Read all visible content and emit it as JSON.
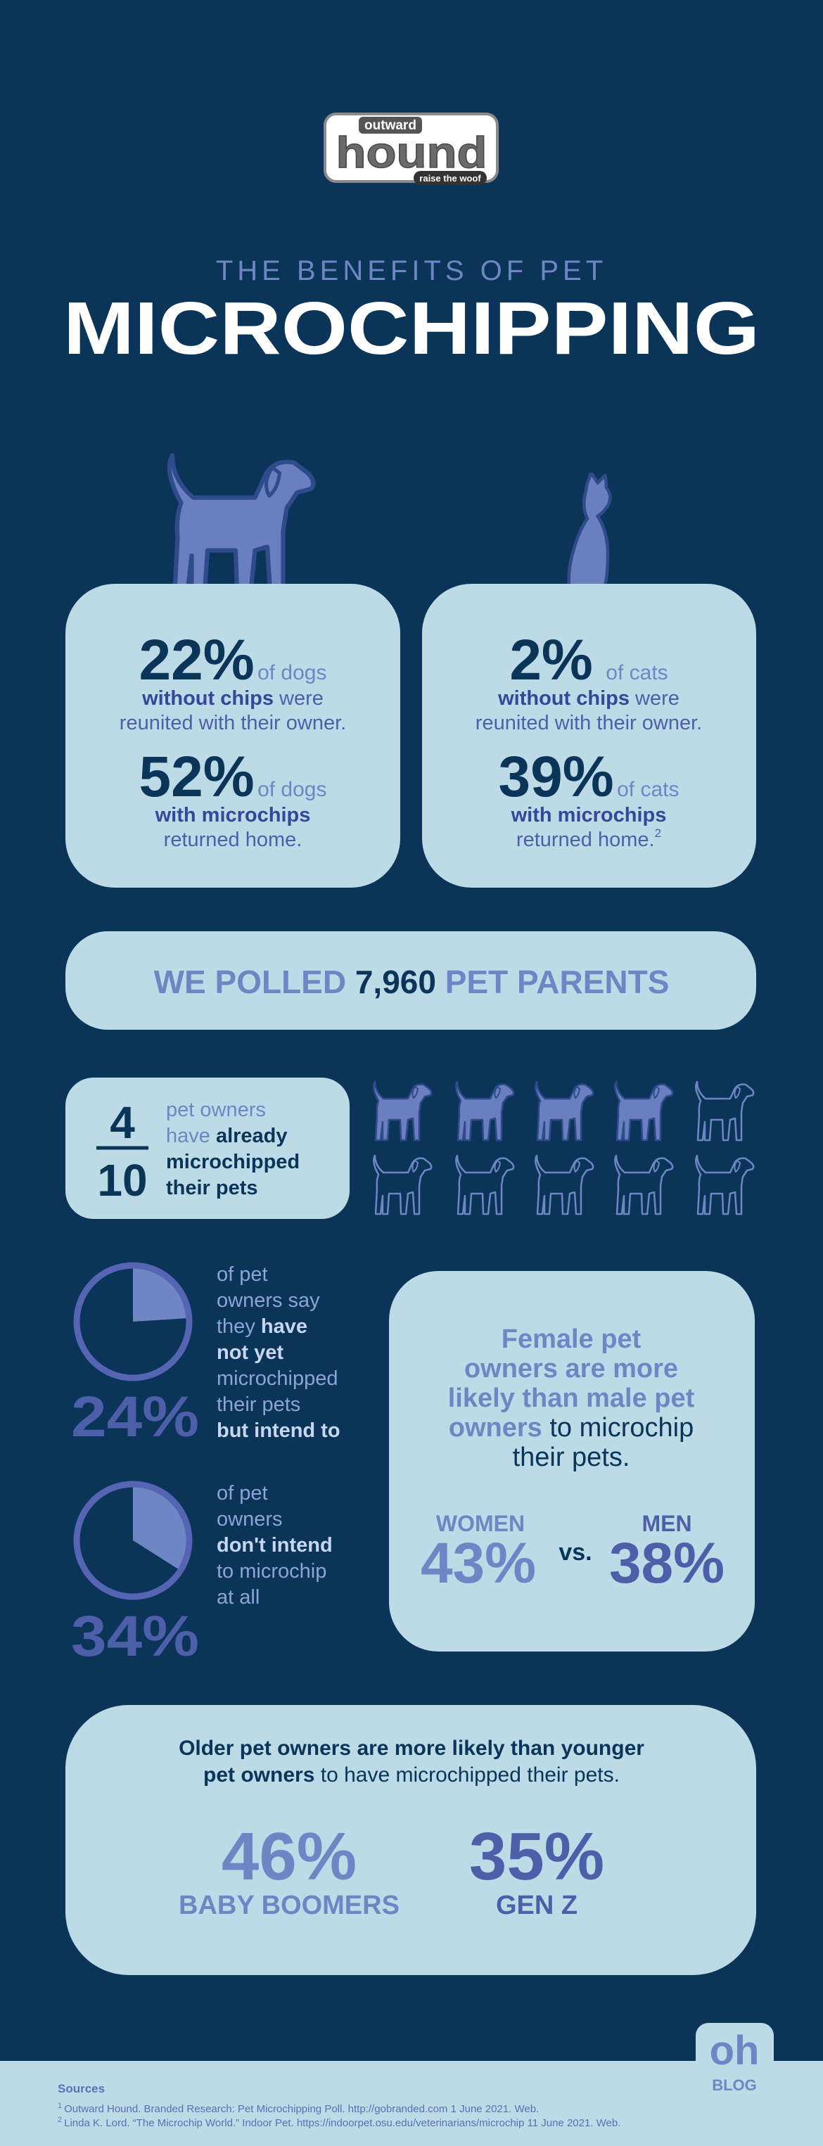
{
  "logo": {
    "brand_top": "outward",
    "brand_main": "hound",
    "tagline": "raise the woof"
  },
  "header": {
    "kicker": "THE BENEFITS OF PET",
    "title": "MICROCHIPPING"
  },
  "dog_card": {
    "stat1": "22%",
    "stat1_unit": "of dogs",
    "stat1_bold": "without chips",
    "stat1_rest": "were",
    "stat1_line2": "reunited with their owner.",
    "stat2": "52%",
    "stat2_unit": "of dogs",
    "stat2_bold": "with microchips",
    "stat2_line2": "returned home."
  },
  "cat_card": {
    "stat1": "2%",
    "stat1_unit": "of cats",
    "stat1_bold": "without chips",
    "stat1_rest": "were",
    "stat1_line2": "reunited with their owner.",
    "stat2": "39%",
    "stat2_unit": "of cats",
    "stat2_bold": "with microchips",
    "stat2_line2": "returned home.",
    "footnote": "2"
  },
  "poll": {
    "lead": "WE POLLED",
    "count": "7,960",
    "tail": "PET PARENTS"
  },
  "fraction": {
    "numerator": 4,
    "denominator": 10,
    "lines": [
      [
        "pet owners"
      ],
      [
        "have",
        "already"
      ],
      [
        "microchipped"
      ],
      [
        "their pets"
      ]
    ]
  },
  "pies": [
    {
      "value": 24,
      "label": "24%",
      "lines": [
        [
          "of pet"
        ],
        [
          "owners say"
        ],
        [
          "they",
          "have"
        ],
        [
          "not yet"
        ],
        [
          "microchipped"
        ],
        [
          "their pets"
        ],
        [
          "but intend to"
        ]
      ]
    },
    {
      "value": 34,
      "label": "34%",
      "lines": [
        [
          "of pet"
        ],
        [
          "owners"
        ],
        [
          "don't intend"
        ],
        [
          "to microchip"
        ],
        [
          "at all"
        ]
      ]
    }
  ],
  "gender": {
    "lines": [
      [
        "Female pet"
      ],
      [
        "owners are more"
      ],
      [
        "likely than male pet"
      ],
      [
        "owners",
        "to microchip"
      ],
      [
        "their pets."
      ]
    ],
    "women_label": "WOMEN",
    "women_value": "43%",
    "vs": "vs.",
    "men_label": "MEN",
    "men_value": "38%"
  },
  "age": {
    "lines": [
      [
        "Older pet owners are more likely than younger"
      ],
      [
        "pet owners",
        "to have microchipped their pets."
      ]
    ],
    "groups": [
      {
        "value": "46%",
        "label": "BABY BOOMERS"
      },
      {
        "value": "35%",
        "label": "GEN Z"
      }
    ]
  },
  "badge": {
    "logo": "oh",
    "label": "BLOG"
  },
  "footer": {
    "heading": "Sources",
    "notes": [
      {
        "mark": "1",
        "text": "Outward Hound. Branded Research: Pet Microchipping Poll. http://gobranded.com 1 June 2021. Web."
      },
      {
        "mark": "2",
        "text": "Linda K. Lord. “The Microchip World.” Indoor Pet. https://indoorpet.osu.edu/veterinarians/microchip 11 June 2021. Web."
      }
    ]
  }
}
